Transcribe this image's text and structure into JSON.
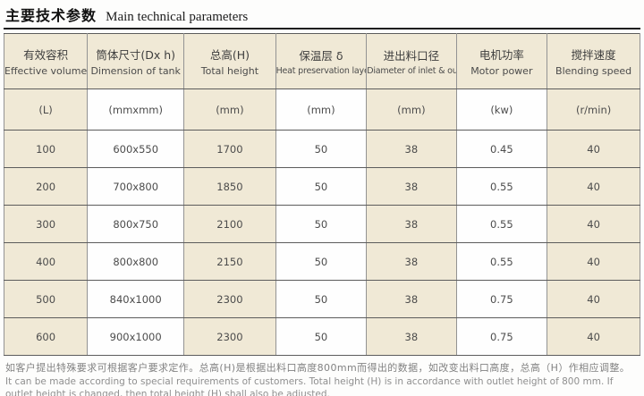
{
  "title": {
    "zh": "主要技术参数",
    "en": "Main technical parameters"
  },
  "table": {
    "columns": [
      {
        "zh": "有效容积",
        "en": "Effective volume",
        "unit": "(L)"
      },
      {
        "zh": "筒体尺寸(Dx h)",
        "en": "Dimension of tank",
        "unit": "(mmxmm)"
      },
      {
        "zh": "总高(H)",
        "en": "Total height",
        "unit": "(mm)"
      },
      {
        "zh": "保温层 δ",
        "en": "Heat preservation layer",
        "unit": "(mm)"
      },
      {
        "zh": "进出料口径",
        "en": "Diameter of inlet & outlet",
        "unit": "(mm)"
      },
      {
        "zh": "电机功率",
        "en": "Motor power",
        "unit": "(kw)"
      },
      {
        "zh": "搅拌速度",
        "en": "Blending speed",
        "unit": "(r/min)"
      }
    ],
    "col_widths_pct": [
      13.1,
      15.2,
      14.4,
      14.3,
      14.1,
      14.3,
      14.6
    ],
    "rows": [
      [
        "100",
        "600x550",
        "1700",
        "50",
        "38",
        "0.45",
        "40"
      ],
      [
        "200",
        "700x800",
        "1850",
        "50",
        "38",
        "0.55",
        "40"
      ],
      [
        "300",
        "800x750",
        "2100",
        "50",
        "38",
        "0.55",
        "40"
      ],
      [
        "400",
        "800x800",
        "2150",
        "50",
        "38",
        "0.55",
        "40"
      ],
      [
        "500",
        "840x1000",
        "2300",
        "50",
        "38",
        "0.75",
        "40"
      ],
      [
        "600",
        "900x1000",
        "2300",
        "50",
        "38",
        "0.75",
        "40"
      ]
    ]
  },
  "footnote": {
    "zh": "如客户提出特殊要求可根据客户要求定作。总高(H)是根据出料口高度800mm而得出的数据，如改变出料口高度，总高（H）作相应调整。",
    "en": "It can be made according to special requirements of customers. Total height (H) is in accordance with outlet height of 800 mm. If outlet height is changed, then total height (H) shall also be adjusted."
  },
  "colors": {
    "cell_cream": "#f0e9d6",
    "cell_white": "#fefefe",
    "rule_dark": "#5c5c5c",
    "rule_light": "#939393",
    "title_rule": "#1d1d1d"
  }
}
